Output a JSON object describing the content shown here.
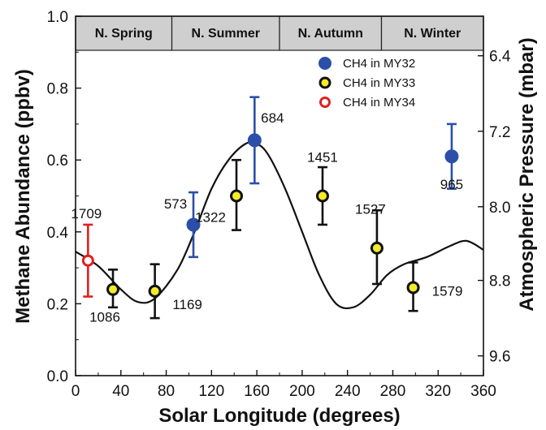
{
  "chart_data": {
    "type": "scatter",
    "xlabel": "Solar Longitude (degrees)",
    "ylabel": "Methane Abundance (ppbv)",
    "y2label": "Atmospheric Pressure (mbar)",
    "xlim": [
      0,
      360
    ],
    "ylim": [
      0,
      1.0
    ],
    "xticks": [
      "0",
      "40",
      "80",
      "120",
      "160",
      "200",
      "240",
      "280",
      "320",
      "360"
    ],
    "yticks": [
      "0.0",
      "0.2",
      "0.4",
      "0.6",
      "0.8",
      "1.0"
    ],
    "y2ticks": [
      {
        "label": "6.4",
        "y": 0.89
      },
      {
        "label": "7.2",
        "y": 0.68
      },
      {
        "label": "8.0",
        "y": 0.47
      },
      {
        "label": "8.8",
        "y": 0.265
      },
      {
        "label": "9.6",
        "y": 0.055
      }
    ],
    "seasons": [
      {
        "label": "N. Spring",
        "start": 0,
        "end": 85
      },
      {
        "label": "N. Summer",
        "start": 85,
        "end": 180
      },
      {
        "label": "N. Autumn",
        "start": 180,
        "end": 270
      },
      {
        "label": "N. Winter",
        "start": 270,
        "end": 360
      }
    ],
    "legend_position": "top-right",
    "series": [
      {
        "name": "CH4 in MY32",
        "color": "#2b4fa8",
        "marker": "filled-circle",
        "points": [
          {
            "x": 104,
            "y": 0.42,
            "err_lo": 0.33,
            "err_hi": 0.51,
            "label": "573"
          },
          {
            "x": 158,
            "y": 0.655,
            "err_lo": 0.535,
            "err_hi": 0.775,
            "label": "684"
          },
          {
            "x": 332,
            "y": 0.61,
            "err_lo": 0.52,
            "err_hi": 0.7,
            "label": "965"
          }
        ]
      },
      {
        "name": "CH4 in MY33",
        "color": "#111111",
        "marker": "yellow-circle",
        "points": [
          {
            "x": 33,
            "y": 0.24,
            "err_lo": 0.19,
            "err_hi": 0.295,
            "label": "1086"
          },
          {
            "x": 70,
            "y": 0.235,
            "err_lo": 0.16,
            "err_hi": 0.31,
            "label": "1169"
          },
          {
            "x": 142,
            "y": 0.5,
            "err_lo": 0.405,
            "err_hi": 0.6,
            "label": "1322"
          },
          {
            "x": 218,
            "y": 0.5,
            "err_lo": 0.42,
            "err_hi": 0.58,
            "label": "1451"
          },
          {
            "x": 266,
            "y": 0.355,
            "err_lo": 0.255,
            "err_hi": 0.46,
            "label": "1527"
          },
          {
            "x": 298,
            "y": 0.245,
            "err_lo": 0.18,
            "err_hi": 0.315,
            "label": "1579"
          }
        ]
      },
      {
        "name": "CH4 in MY34",
        "color": "#e02020",
        "marker": "ring",
        "points": [
          {
            "x": 11,
            "y": 0.32,
            "err_lo": 0.22,
            "err_hi": 0.42,
            "label": "1709"
          }
        ]
      }
    ],
    "pressure_curve": {
      "x": [
        0,
        20,
        40,
        55,
        70,
        90,
        105,
        120,
        135,
        150,
        160,
        170,
        185,
        200,
        215,
        230,
        245,
        260,
        275,
        290,
        310,
        330,
        345,
        360
      ],
      "y": [
        0.345,
        0.305,
        0.24,
        0.205,
        0.215,
        0.295,
        0.4,
        0.52,
        0.6,
        0.645,
        0.645,
        0.615,
        0.52,
        0.4,
        0.28,
        0.2,
        0.19,
        0.225,
        0.28,
        0.31,
        0.33,
        0.36,
        0.375,
        0.35
      ]
    }
  }
}
